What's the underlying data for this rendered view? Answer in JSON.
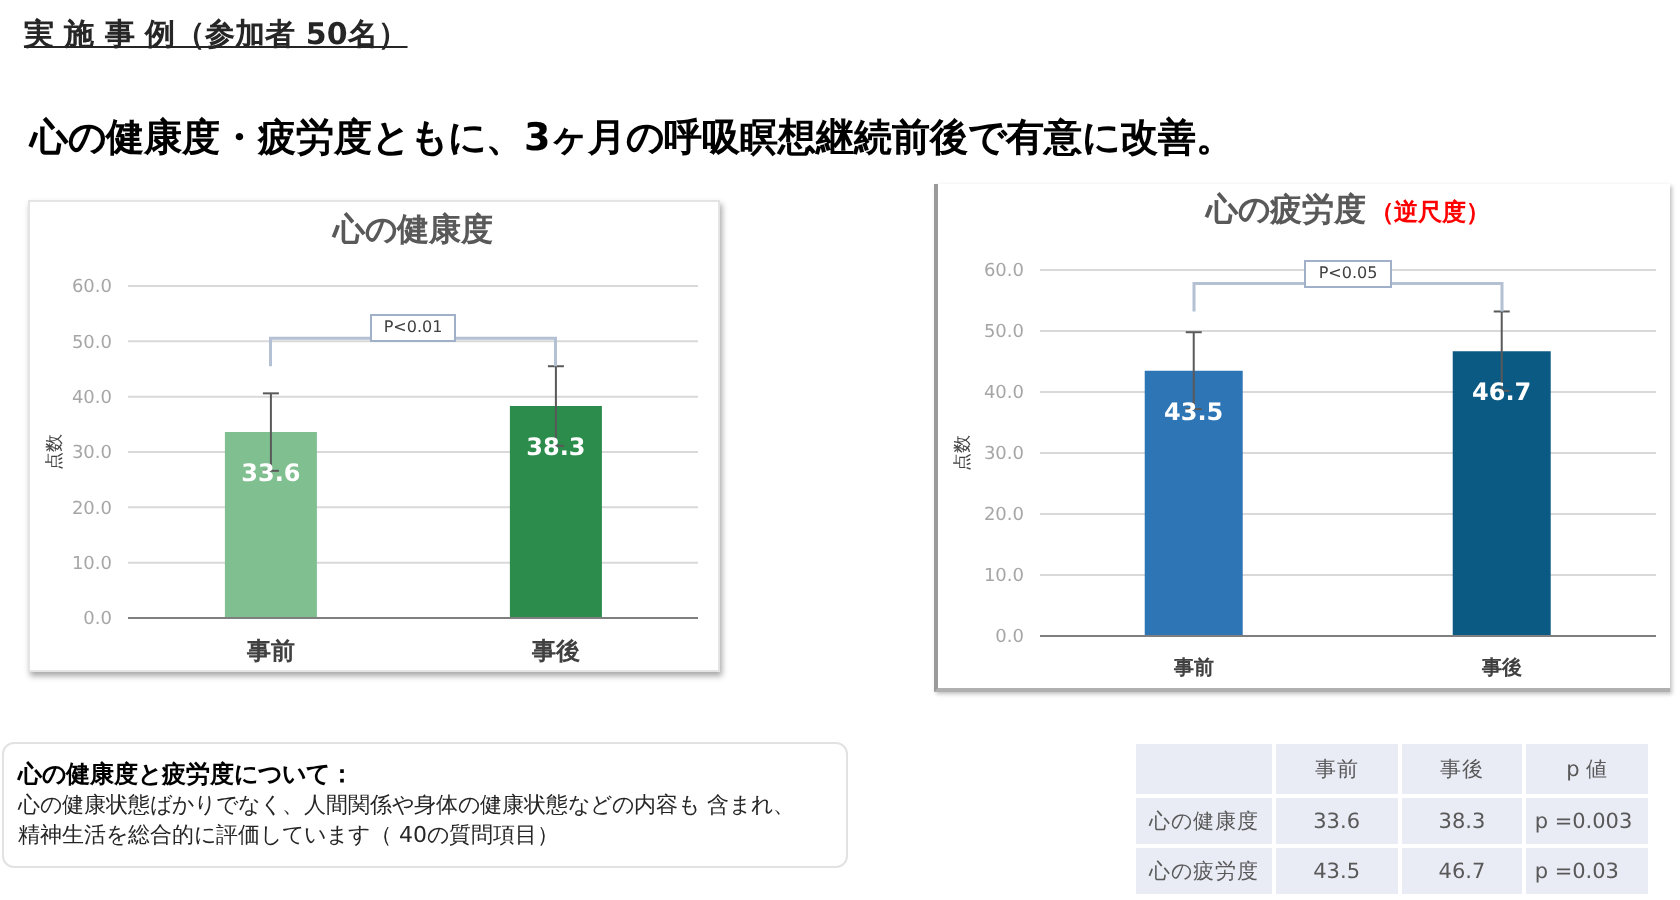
{
  "chart_data": [
    {
      "type": "other",
      "title": "実 施 事 例（参加者 50名）",
      "subtitle": "心の健康度・疲労度ともに、3ヶ月の呼吸瞑想継続前後で有意に改善。"
    },
    {
      "type": "bar",
      "title": "心の健康度",
      "ylabel": "点数",
      "categories": [
        "事前",
        "事後"
      ],
      "values": [
        33.6,
        38.3
      ],
      "colors": [
        "#80bf8f",
        "#2b8c4b"
      ],
      "errors": [
        7.0,
        7.2
      ],
      "ylim": [
        0,
        60
      ],
      "yticks": [
        {
          "value": 0,
          "label": "0.0"
        },
        {
          "value": 10,
          "label": "10.0"
        },
        {
          "value": 20,
          "label": "20.0"
        },
        {
          "value": 30,
          "label": "30.0"
        },
        {
          "value": 40,
          "label": "40.0"
        },
        {
          "value": 50,
          "label": "50.0"
        },
        {
          "value": 60,
          "label": "60.0"
        }
      ],
      "grid": "y",
      "data_labels": true,
      "annotations": [
        "P<0.01"
      ]
    },
    {
      "type": "bar",
      "title": "心の疲労度",
      "subtitle": "（逆尺度）",
      "ylabel": "点数",
      "categories": [
        "事前",
        "事後"
      ],
      "values": [
        43.5,
        46.7
      ],
      "colors": [
        "#2e75b6",
        "#0b5a84"
      ],
      "errors": [
        6.3,
        6.5
      ],
      "ylim": [
        0,
        60
      ],
      "yticks": [
        {
          "value": 0,
          "label": "0.0"
        },
        {
          "value": 10,
          "label": "10.0"
        },
        {
          "value": 20,
          "label": "20.0"
        },
        {
          "value": 30,
          "label": "30.0"
        },
        {
          "value": 40,
          "label": "40.0"
        },
        {
          "value": 50,
          "label": "50.0"
        },
        {
          "value": 60,
          "label": "60.0"
        }
      ],
      "grid": "y",
      "data_labels": true,
      "annotations": [
        "P<0.05"
      ]
    },
    {
      "type": "other",
      "title": "心の健康度と疲労度について：",
      "annotations": [
        "心の健康状態ばかりでなく、人間関係や身体の健康状態などの内容も  含まれ、",
        "精神生活を総合的に評価しています（ 40の質問項目）"
      ]
    },
    {
      "type": "other",
      "categories": [
        "事前",
        "事後",
        "p 値"
      ],
      "y_categories": [
        "心の健康度",
        "心の疲労度"
      ],
      "cell_labels": [
        [
          "33.6",
          "38.3",
          "p =0.003"
        ],
        [
          "43.5",
          "46.7",
          "p =0.03"
        ]
      ]
    }
  ]
}
